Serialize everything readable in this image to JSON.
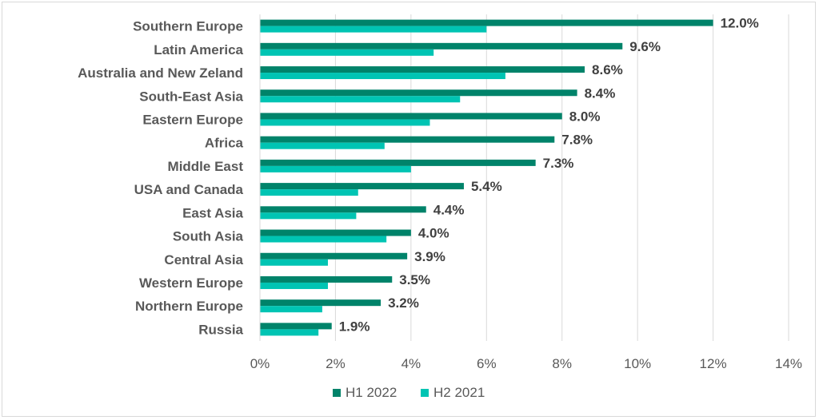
{
  "chart_data": {
    "type": "bar",
    "orientation": "horizontal",
    "title": "",
    "xlabel": "",
    "ylabel": "",
    "xlim": [
      0,
      14
    ],
    "x_ticks": [
      "0%",
      "2%",
      "4%",
      "6%",
      "8%",
      "10%",
      "12%",
      "14%"
    ],
    "grid": true,
    "legend_position": "bottom",
    "categories": [
      "Southern Europe",
      "Latin America",
      "Australia and New Zeland",
      "South-East Asia",
      "Eastern Europe",
      "Africa",
      "Middle East",
      "USA and Canada",
      "East Asia",
      "South Asia",
      "Central Asia",
      "Western Europe",
      "Northern Europe",
      "Russia"
    ],
    "series": [
      {
        "name": "H1 2022",
        "color": "#00836a",
        "values": [
          12.0,
          9.6,
          8.6,
          8.4,
          8.0,
          7.8,
          7.3,
          5.4,
          4.4,
          4.0,
          3.9,
          3.5,
          3.2,
          1.9
        ],
        "data_labels": [
          "12.0%",
          "9.6%",
          "8.6%",
          "8.4%",
          "8.0%",
          "7.8%",
          "7.3%",
          "5.4%",
          "4.4%",
          "4.0%",
          "3.9%",
          "3.5%",
          "3.2%",
          "1.9%"
        ]
      },
      {
        "name": "H2 2021",
        "color": "#00c4b3",
        "values": [
          6.0,
          4.6,
          6.5,
          5.3,
          4.5,
          3.3,
          4.0,
          2.6,
          2.55,
          3.35,
          1.8,
          1.8,
          1.65,
          1.55
        ]
      }
    ]
  }
}
